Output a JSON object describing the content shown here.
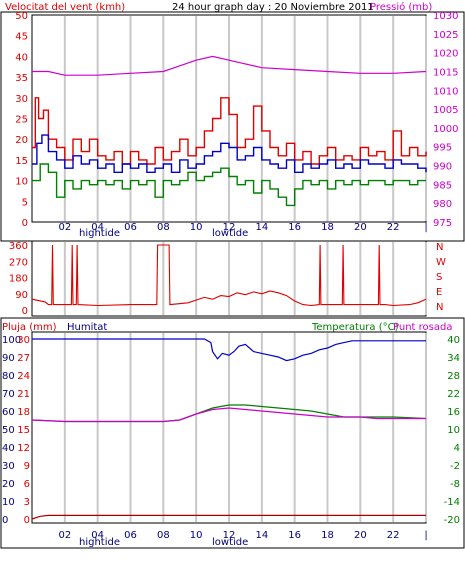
{
  "header": {
    "wind_title": "Velocitat del vent (kmh)",
    "center_title": "24 hour graph day : 20 Noviembre 2011",
    "pressure_title": "Pressió (mb)"
  },
  "colors": {
    "frame": "#000000",
    "grid": "#c8c8c8",
    "red": "#e00000",
    "green": "#008000",
    "blue": "#0000c8",
    "magenta": "#cc00cc",
    "dark_red": "#aa0000",
    "navy": "#000080"
  },
  "x_axis": {
    "ticks": [
      "02",
      "04",
      "06",
      "08",
      "10",
      "12",
      "14",
      "16",
      "18",
      "20",
      "22",
      "|"
    ],
    "tide_labels": [
      "hightide",
      "lowtide"
    ]
  },
  "panel3_labels": {
    "rain": "Pluja (mm)",
    "humidity": "Humitat",
    "temp": "Temperatura (°C)",
    "dew": "Punt rosada"
  },
  "chart_data": [
    {
      "type": "line",
      "title": "24 hour graph day : 20 Noviembre 2011",
      "x_unit": "hour",
      "ylabel": "Velocitat del vent (kmh)",
      "ylim": [
        0,
        50
      ],
      "y_ticks": [
        0,
        5,
        10,
        15,
        20,
        25,
        30,
        35,
        40,
        45,
        50
      ],
      "y2label": "Pressió (mb)",
      "y2lim": [
        975,
        1030
      ],
      "y2_ticks": [
        975,
        980,
        985,
        990,
        995,
        1000,
        1005,
        1010,
        1015,
        1020,
        1025,
        1030
      ],
      "series": [
        {
          "name": "Pressió (mb)",
          "axis": "right",
          "color": "magenta",
          "x": [
            0,
            1,
            2,
            4,
            6,
            8,
            9,
            10,
            11,
            12,
            14,
            16,
            18,
            20,
            22,
            24
          ],
          "values": [
            1015,
            1015,
            1014,
            1014,
            1014.5,
            1015,
            1016.5,
            1018,
            1019,
            1018,
            1016,
            1015.5,
            1015,
            1014.5,
            1014.5,
            1015
          ]
        },
        {
          "name": "gust",
          "axis": "left",
          "color": "red",
          "x": [
            0,
            0.2,
            0.4,
            0.7,
            1,
            1.5,
            2,
            2.5,
            3,
            3.5,
            4,
            4.5,
            5,
            5.5,
            6,
            6.5,
            7,
            7.5,
            8,
            8.5,
            9,
            9.5,
            10,
            10.5,
            11,
            11.5,
            12,
            12.5,
            13,
            13.5,
            14,
            14.5,
            15,
            15.5,
            16,
            16.5,
            17,
            17.5,
            18,
            18.5,
            19,
            19.5,
            20,
            20.5,
            21,
            21.5,
            22,
            22.5,
            23,
            23.5,
            24
          ],
          "values": [
            18,
            30,
            25,
            27,
            20,
            18,
            15,
            20,
            17,
            20,
            16,
            15,
            17,
            14,
            17,
            15,
            14,
            18,
            15,
            17,
            20,
            16,
            18,
            22,
            25,
            30,
            26,
            18,
            20,
            28,
            22,
            18,
            16,
            19,
            15,
            17,
            14,
            16,
            18,
            15,
            16,
            15,
            18,
            16,
            17,
            15,
            22,
            16,
            18,
            16,
            17
          ]
        },
        {
          "name": "average",
          "axis": "left",
          "color": "blue",
          "x": [
            0,
            0.3,
            0.6,
            1,
            1.5,
            2,
            2.5,
            3,
            3.5,
            4,
            4.5,
            5,
            5.5,
            6,
            6.5,
            7,
            7.5,
            8,
            8.5,
            9,
            9.5,
            10,
            10.5,
            11,
            11.5,
            12,
            12.5,
            13,
            13.5,
            14,
            14.5,
            15,
            15.5,
            16,
            16.5,
            17,
            17.5,
            18,
            18.5,
            19,
            19.5,
            20,
            20.5,
            21,
            21.5,
            22,
            22.5,
            23,
            23.5,
            24
          ],
          "values": [
            14,
            19,
            21,
            17,
            15,
            13,
            16,
            14,
            15,
            13,
            14,
            12,
            14,
            13,
            14,
            12,
            13,
            14,
            12,
            15,
            13,
            14,
            16,
            17,
            19,
            18,
            15,
            16,
            18,
            15,
            14,
            13,
            15,
            12,
            14,
            13,
            14,
            15,
            13,
            14,
            13,
            15,
            14,
            14,
            13,
            15,
            14,
            14,
            13,
            12
          ]
        },
        {
          "name": "minimum",
          "axis": "left",
          "color": "green",
          "x": [
            0,
            0.5,
            1,
            1.5,
            2,
            2.5,
            3,
            3.5,
            4,
            4.5,
            5,
            5.5,
            6,
            6.5,
            7,
            7.5,
            8,
            8.5,
            9,
            9.5,
            10,
            10.5,
            11,
            11.5,
            12,
            12.5,
            13,
            13.5,
            14,
            14.5,
            15,
            15.5,
            16,
            16.5,
            17,
            17.5,
            18,
            18.5,
            19,
            19.5,
            20,
            20.5,
            21,
            21.5,
            22,
            22.5,
            23,
            23.5,
            24
          ],
          "values": [
            10,
            14,
            12,
            6,
            10,
            8,
            10,
            9,
            10,
            9,
            10,
            8,
            10,
            9,
            10,
            6,
            10,
            9,
            10,
            12,
            10,
            11,
            12,
            13,
            11,
            9,
            10,
            7,
            10,
            8,
            6,
            4,
            8,
            10,
            9,
            10,
            8,
            10,
            9,
            10,
            9,
            10,
            10,
            9,
            10,
            10,
            9,
            10,
            10
          ]
        }
      ]
    },
    {
      "type": "line",
      "ylabel": "N W S E N",
      "ylim": [
        0,
        360
      ],
      "y_ticks": [
        0,
        90,
        180,
        270,
        360
      ],
      "right_labels": [
        "N",
        "W",
        "S",
        "E",
        "N"
      ],
      "series": [
        {
          "name": "direction",
          "color": "red",
          "x": [
            0,
            0.8,
            1,
            1.2,
            1.25,
            1.3,
            1.6,
            2.4,
            2.45,
            2.5,
            2.7,
            2.75,
            2.8,
            4,
            6,
            7.6,
            7.65,
            7.7,
            8.3,
            8.35,
            8.4,
            9.5,
            10,
            10.5,
            11,
            11.5,
            12,
            12.5,
            13,
            13.5,
            14,
            14.5,
            15,
            15.5,
            16,
            16.5,
            17,
            17.5,
            17.55,
            17.6,
            17.65,
            17.7,
            18,
            18.9,
            18.95,
            19,
            19.05,
            19.1,
            20,
            21.1,
            21.15,
            21.2,
            21.4,
            21.45,
            21.5,
            22,
            23,
            23.5,
            24
          ],
          "values": [
            60,
            45,
            30,
            30,
            360,
            30,
            30,
            30,
            360,
            30,
            30,
            360,
            30,
            25,
            30,
            30,
            360,
            360,
            360,
            360,
            30,
            40,
            55,
            70,
            60,
            80,
            75,
            95,
            85,
            100,
            90,
            105,
            95,
            80,
            50,
            30,
            25,
            30,
            360,
            30,
            30,
            30,
            30,
            30,
            360,
            30,
            30,
            30,
            30,
            30,
            360,
            30,
            30,
            30,
            30,
            25,
            30,
            40,
            60
          ]
        }
      ]
    },
    {
      "type": "line",
      "ylabel": "Pluja (mm)",
      "ylim": [
        0,
        100
      ],
      "y_ticks": [
        0,
        10,
        20,
        30,
        40,
        50,
        60,
        70,
        80,
        90,
        100
      ],
      "y_ticks_mid": [
        0,
        3,
        6,
        9,
        12,
        15,
        18,
        21,
        24,
        27,
        30
      ],
      "y2label": "Temperatura (°C)",
      "y2lim": [
        -20,
        40
      ],
      "y2_ticks": [
        -20,
        -14,
        -8,
        -2,
        4,
        10,
        16,
        22,
        28,
        34,
        40
      ],
      "series": [
        {
          "name": "Pluja (mm)",
          "axis": "left",
          "color": "dark_red",
          "x": [
            0,
            0.5,
            1,
            24
          ],
          "values": [
            0,
            1.5,
            2,
            2
          ]
        },
        {
          "name": "Humitat",
          "axis": "left",
          "color": "blue",
          "x": [
            0,
            10.5,
            10.9,
            11,
            11.3,
            11.6,
            12,
            12.3,
            12.6,
            13,
            13.5,
            14,
            14.5,
            15,
            15.5,
            16,
            16.5,
            17,
            17.5,
            18,
            18.5,
            19,
            19.5,
            20,
            24
          ],
          "values": [
            100,
            100,
            98,
            93,
            89,
            92,
            91,
            93,
            96,
            97,
            93,
            92,
            91,
            90,
            88,
            89,
            91,
            92,
            94,
            95,
            97,
            98,
            99,
            99,
            99
          ]
        },
        {
          "name": "Temperatura (°C)",
          "axis": "right",
          "color": "green",
          "x": [
            0,
            2,
            4,
            6,
            8,
            9,
            10,
            11,
            12,
            13,
            14,
            15,
            16,
            17,
            18,
            19,
            20,
            21,
            22,
            24
          ],
          "values": [
            13,
            12.5,
            12.5,
            12.5,
            12.5,
            13,
            15,
            17,
            18,
            18,
            17.5,
            17,
            16.5,
            16,
            15,
            14,
            14,
            14,
            14,
            13.5
          ]
        },
        {
          "name": "Punt rosada",
          "axis": "right",
          "color": "magenta",
          "x": [
            0,
            2,
            4,
            6,
            8,
            9,
            10,
            11,
            12,
            13,
            14,
            15,
            16,
            17,
            18,
            19,
            20,
            21,
            22,
            24
          ],
          "values": [
            13,
            12.5,
            12.5,
            12.5,
            12.5,
            13,
            15,
            16.5,
            17,
            16.5,
            16,
            15.5,
            15,
            14.5,
            14,
            14,
            14,
            13.5,
            13.5,
            13.5
          ]
        }
      ]
    }
  ]
}
